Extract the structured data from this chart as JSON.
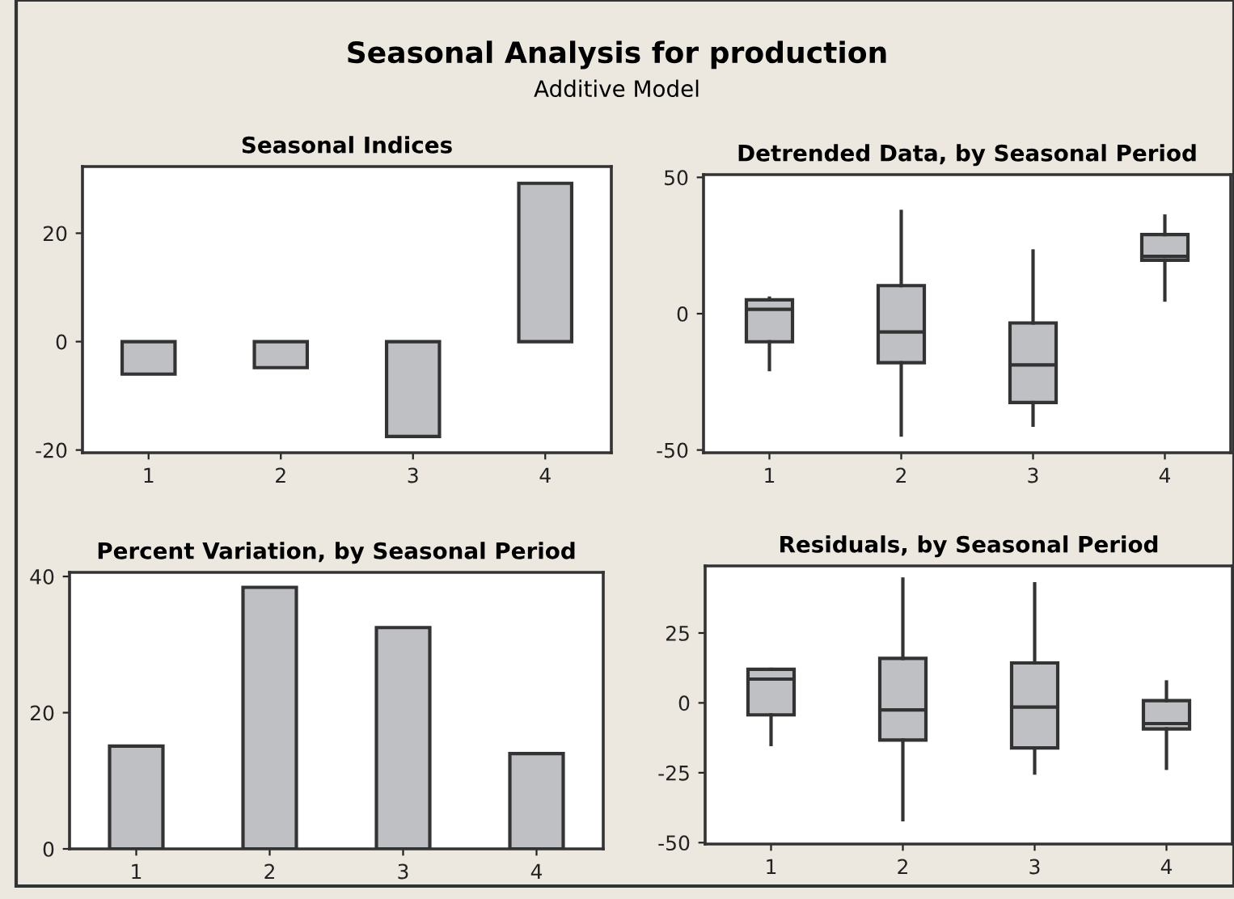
{
  "chart_data": [
    {
      "type": "bar",
      "title": "Seasonal Indices",
      "annotations": [
        "Seasonal Analysis for production",
        "Additive Model"
      ],
      "categories": [
        "1",
        "2",
        "3",
        "4"
      ],
      "values": [
        -6.0,
        -4.8,
        -17.5,
        29.2
      ],
      "color": "#bec0c4",
      "ylim": [
        -20.5,
        32.3
      ],
      "yticks": [
        -20,
        0,
        20
      ],
      "grid": false,
      "legend": false
    },
    {
      "type": "box",
      "title": "Detrended Data, by Seasonal Period",
      "categories": [
        "1",
        "2",
        "3",
        "4"
      ],
      "color": "#bec0c4",
      "boxes": [
        {
          "low": -20.5,
          "q1": -10.3,
          "median": 1.6,
          "q3": 5.1,
          "high": 5.7
        },
        {
          "low": -44.5,
          "q1": -18,
          "median": -6.7,
          "q3": 10.3,
          "high": 37.5
        },
        {
          "low": -40.9,
          "q1": -32.6,
          "median": -18.8,
          "q3": -3.4,
          "high": 23
        },
        {
          "low": 5,
          "q1": 19.6,
          "median": 21,
          "q3": 29,
          "high": 35.8
        }
      ],
      "ylim": [
        -51,
        51
      ],
      "yticks": [
        -50,
        0,
        50
      ],
      "grid": false,
      "legend": false
    },
    {
      "type": "bar",
      "title": "Percent Variation, by Seasonal Period",
      "categories": [
        "1",
        "2",
        "3",
        "4"
      ],
      "values": [
        15.1,
        38.4,
        32.5,
        14.0
      ],
      "color": "#bec0c4",
      "ylim": [
        0,
        40.6
      ],
      "yticks": [
        0,
        20,
        40
      ],
      "grid": false,
      "legend": false
    },
    {
      "type": "box",
      "title": "Residuals, by Seasonal Period",
      "categories": [
        "1",
        "2",
        "3",
        "4"
      ],
      "color": "#bec0c4",
      "boxes": [
        {
          "low": -14.9,
          "q1": -4.3,
          "median": 8.5,
          "q3": 12,
          "high": 12
        },
        {
          "low": -41.8,
          "q1": -13.3,
          "median": -2.5,
          "q3": 15.9,
          "high": 44.3
        },
        {
          "low": -25.1,
          "q1": -16.1,
          "median": -1.5,
          "q3": 14.3,
          "high": 42.6
        },
        {
          "low": -23.4,
          "q1": -9.3,
          "median": -7.4,
          "q3": 0.8,
          "high": 7.5
        }
      ],
      "ylim": [
        -50.5,
        49
      ],
      "yticks": [
        -50,
        -25,
        0,
        25
      ],
      "grid": false,
      "legend": false
    }
  ]
}
